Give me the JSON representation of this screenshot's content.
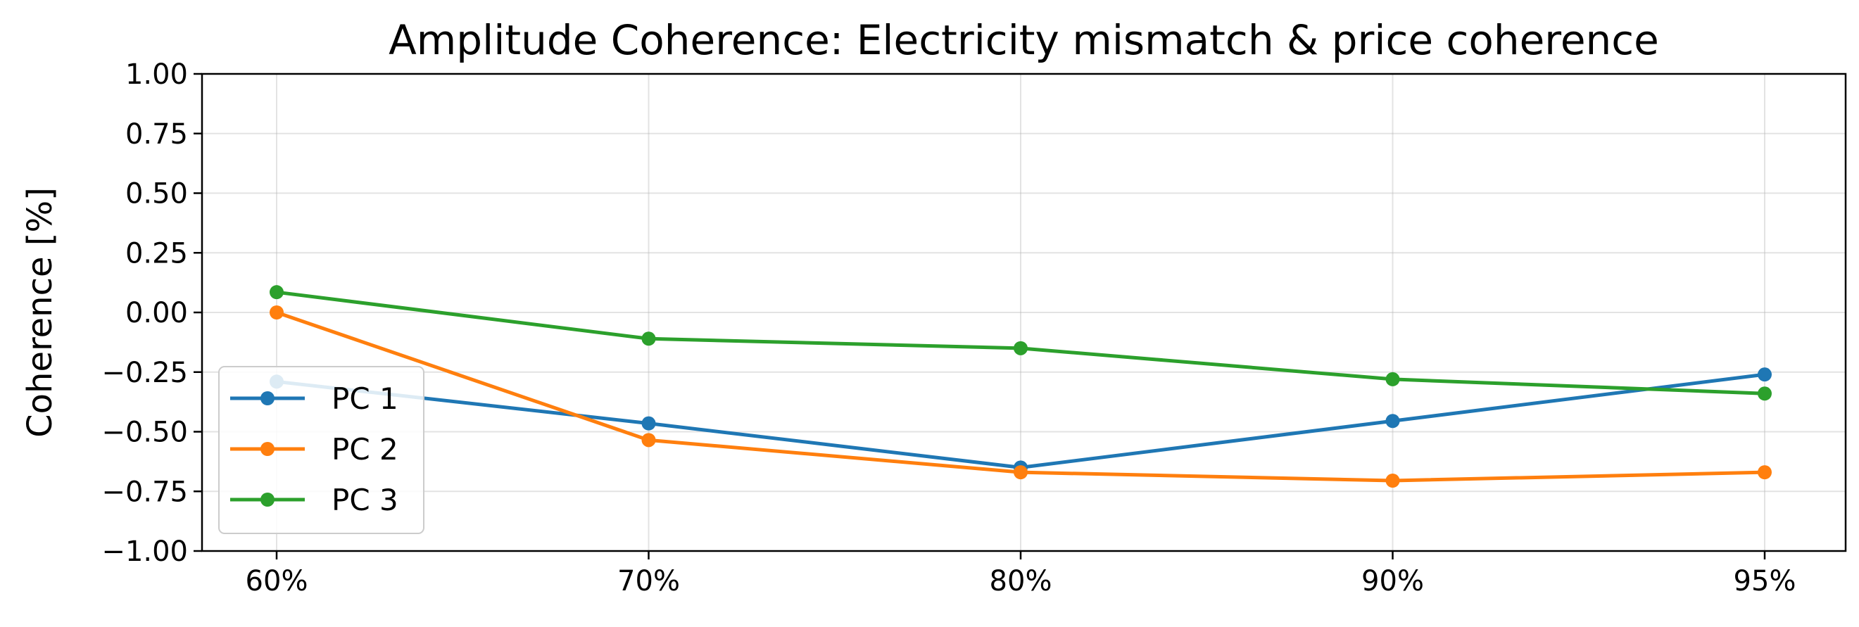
{
  "chart_data": {
    "type": "line",
    "title": "Amplitude Coherence: Electricity mismatch & price coherence",
    "xlabel": "",
    "ylabel": "Coherence [%]",
    "categories": [
      "60%",
      "70%",
      "80%",
      "90%",
      "95%"
    ],
    "ylim": [
      -1.0,
      1.0
    ],
    "yticks": [
      1.0,
      0.75,
      0.5,
      0.25,
      0.0,
      -0.25,
      -0.5,
      -0.75,
      -1.0
    ],
    "ytick_labels": [
      "1.00",
      "0.75",
      "0.50",
      "0.25",
      "0.00",
      "−0.25",
      "−0.50",
      "−0.75",
      "−1.00"
    ],
    "grid": true,
    "legend_position": "lower-left",
    "series": [
      {
        "name": "PC 1",
        "color": "#1f77b4",
        "values": [
          -0.29,
          -0.465,
          -0.65,
          -0.455,
          -0.26
        ]
      },
      {
        "name": "PC 2",
        "color": "#ff7f0e",
        "values": [
          0.0,
          -0.535,
          -0.67,
          -0.705,
          -0.67
        ]
      },
      {
        "name": "PC 3",
        "color": "#2ca02c",
        "values": [
          0.085,
          -0.11,
          -0.15,
          -0.28,
          -0.34
        ]
      }
    ]
  }
}
